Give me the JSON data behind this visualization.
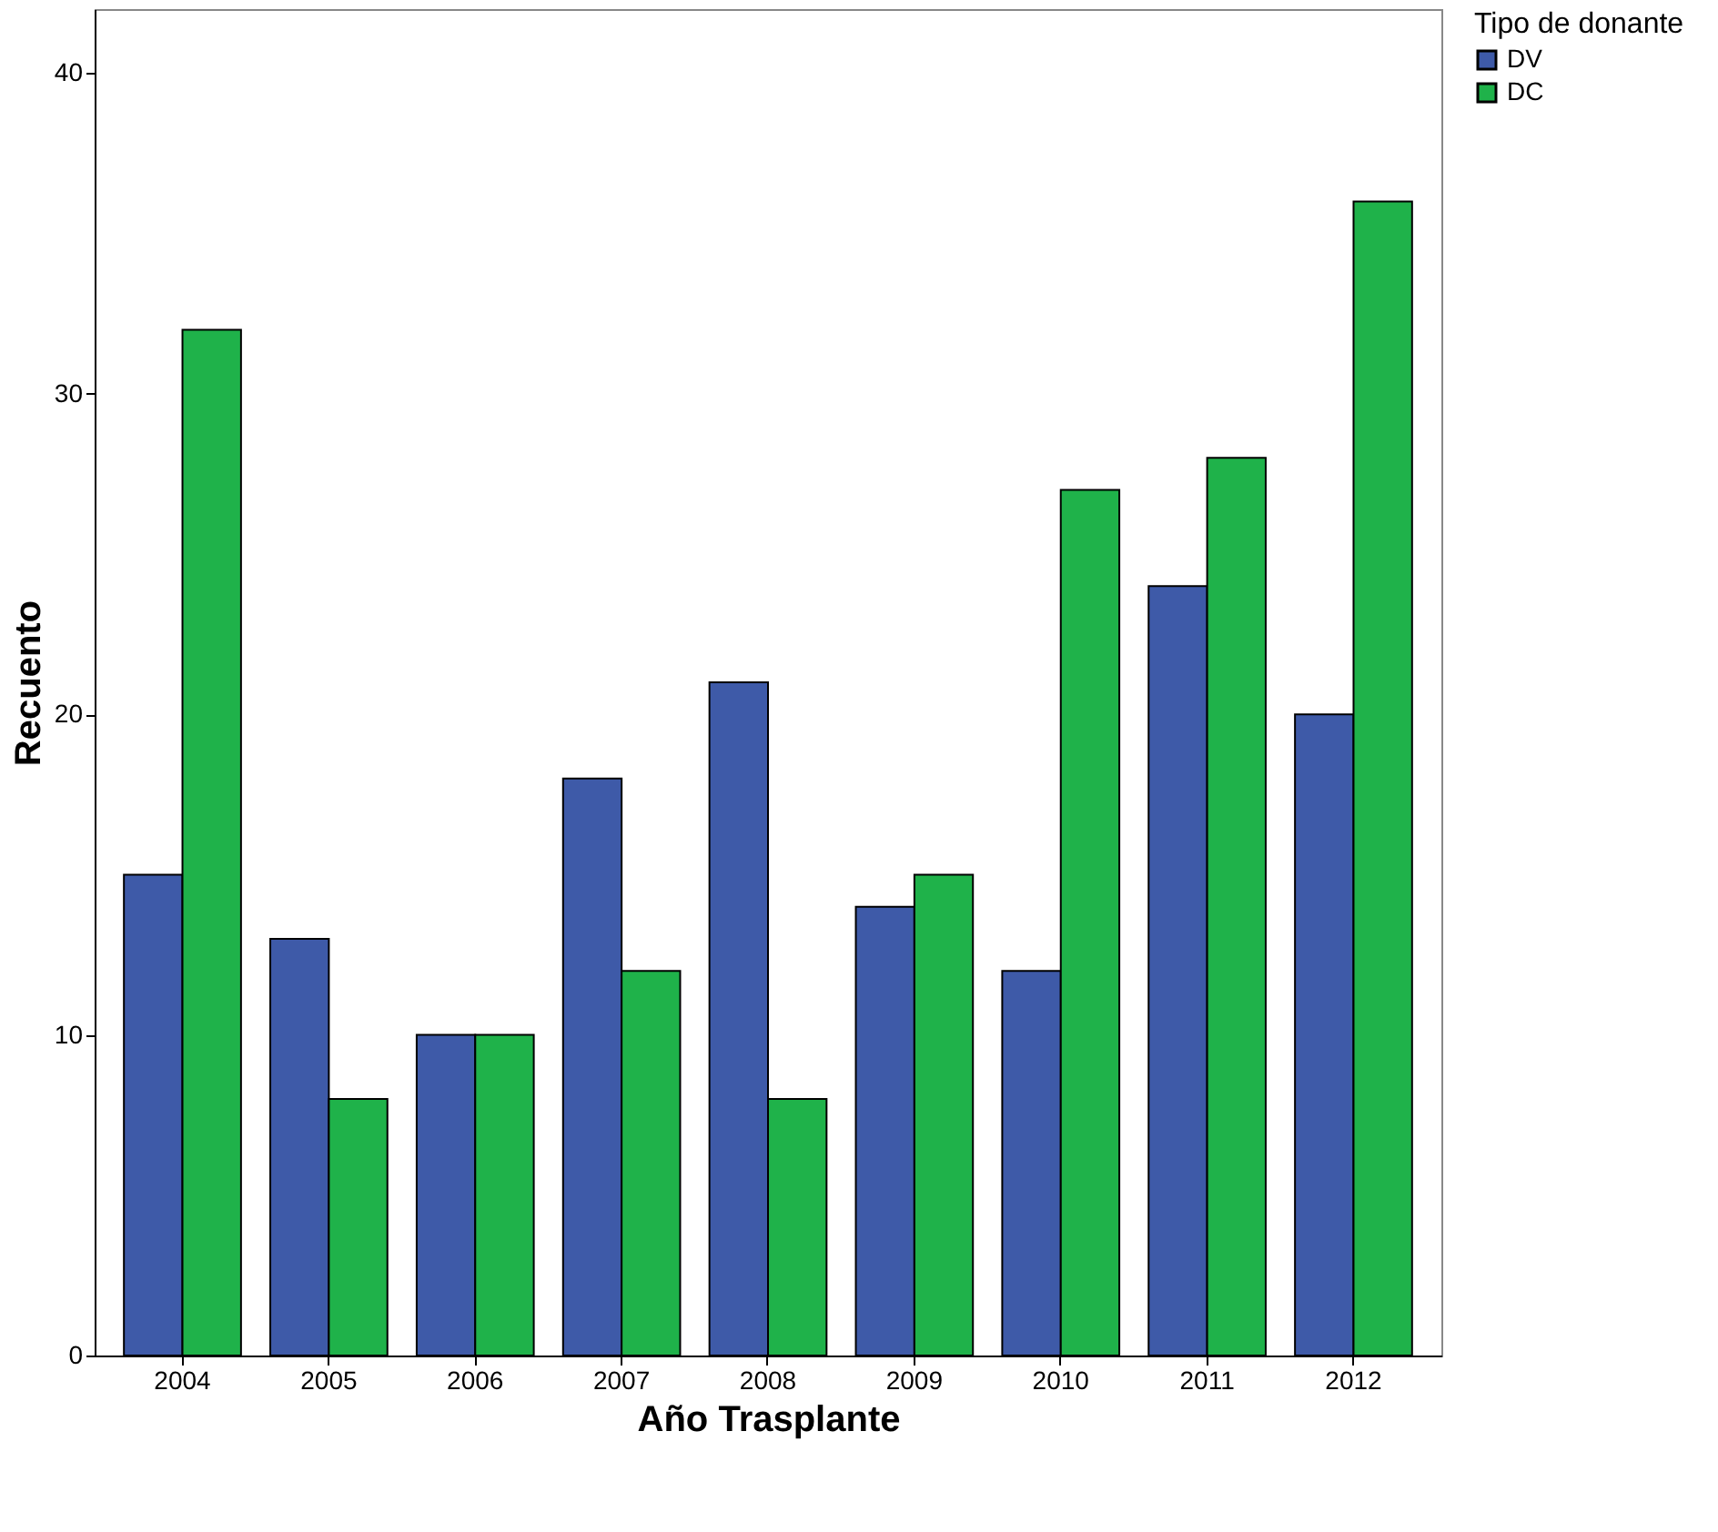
{
  "chart_data": {
    "type": "bar",
    "xlabel": "Año Trasplante",
    "ylabel": "Recuento",
    "legend_title": "Tipo de donante",
    "legend": "top right",
    "categories": [
      "2004",
      "2005",
      "2006",
      "2007",
      "2008",
      "2009",
      "2010",
      "2011",
      "2012"
    ],
    "series": [
      {
        "name": "DV",
        "color": "#3e5aa8",
        "values": [
          15,
          13,
          10,
          18,
          21,
          14,
          12,
          24,
          20
        ]
      },
      {
        "name": "DC",
        "color": "#1fb24a",
        "values": [
          32,
          8,
          10,
          12,
          8,
          15,
          27,
          28,
          36
        ]
      }
    ],
    "ylim": [
      0,
      42
    ],
    "yticks": [
      0,
      10,
      20,
      30,
      40
    ],
    "grid": false
  }
}
